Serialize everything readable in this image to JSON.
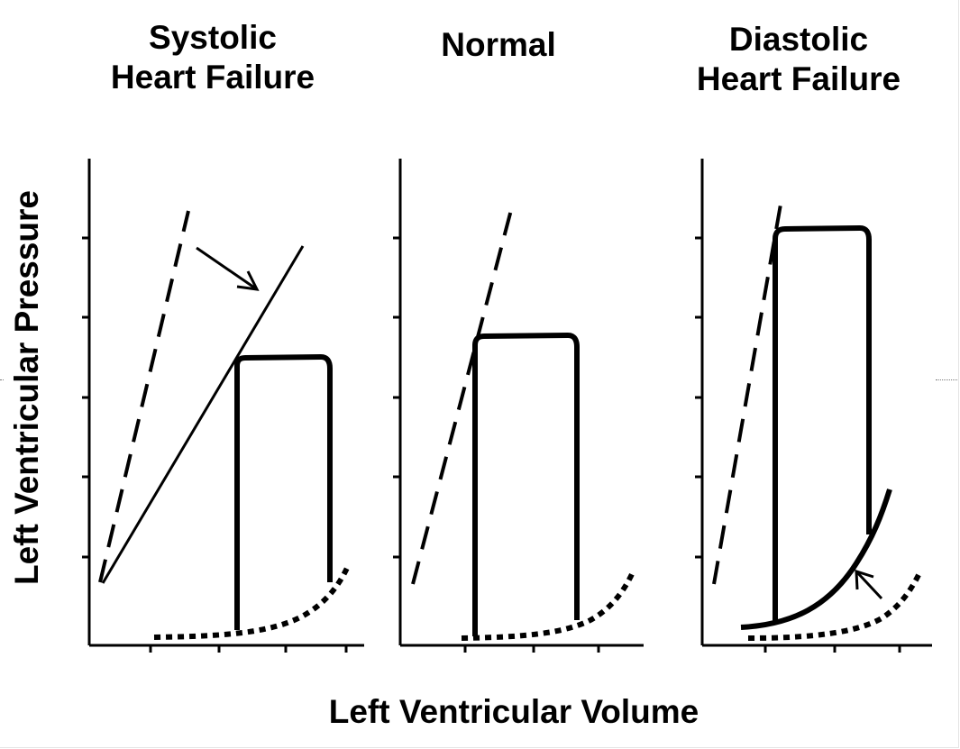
{
  "panels": [
    {
      "id": "systolic",
      "title_line1": "Systolic",
      "title_line2": "Heart Failure"
    },
    {
      "id": "normal",
      "title_line1": "Normal",
      "title_line2": ""
    },
    {
      "id": "diastolic",
      "title_line1": "Diastolic",
      "title_line2": "Heart Failure"
    }
  ],
  "x_axis_label": "Left Ventricular Volume",
  "y_axis_label": "Left Ventricular Pressure",
  "colors": {
    "ink": "#000000",
    "background": "#ffffff"
  }
}
